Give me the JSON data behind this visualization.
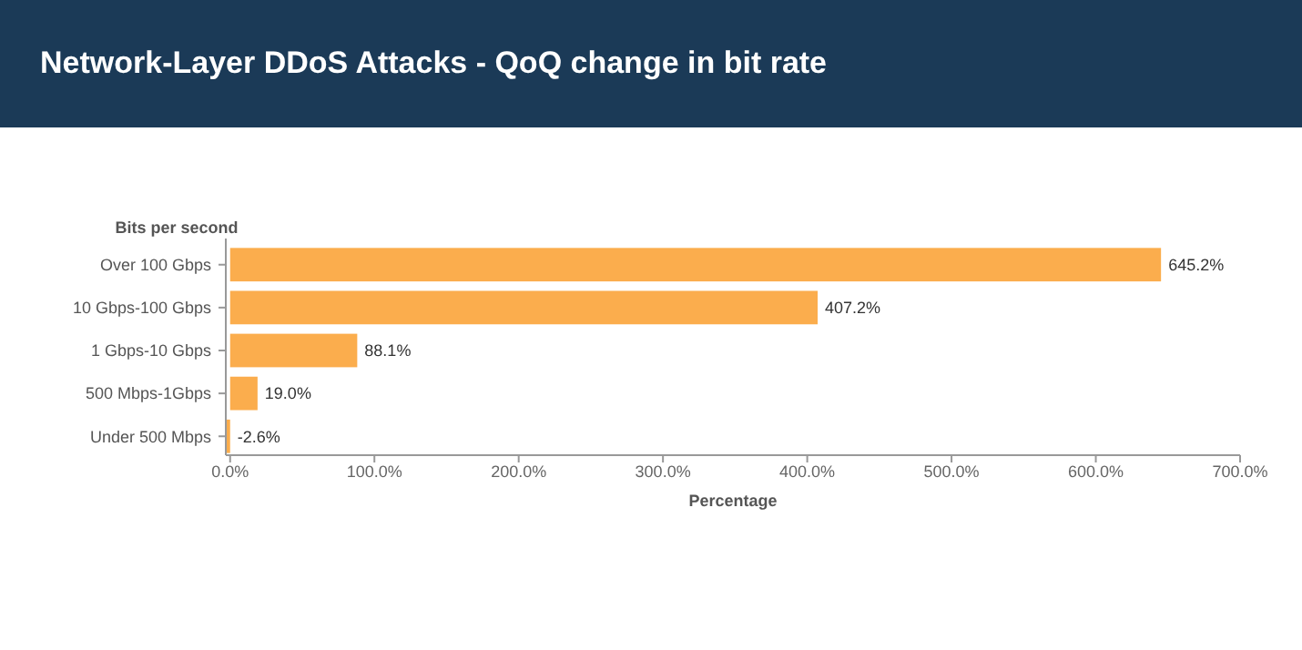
{
  "chart_data": {
    "type": "bar",
    "orientation": "horizontal",
    "title": "Network-Layer DDoS Attacks - QoQ change in bit rate",
    "ylabel": "Bits per second",
    "xlabel": "Percentage",
    "categories": [
      "Over 100 Gbps",
      "10 Gbps-100 Gbps",
      "1 Gbps-10 Gbps",
      "500 Mbps-1Gbps",
      "Under 500 Mbps"
    ],
    "values": [
      645.2,
      407.2,
      88.1,
      19.0,
      -2.6
    ],
    "value_labels": [
      "645.2%",
      "407.2%",
      "88.1%",
      "19.0%",
      "-2.6%"
    ],
    "color": "#fbad4d",
    "xlim": [
      -3,
      700
    ],
    "xticks": [
      {
        "value": 0,
        "label": "0.0%"
      },
      {
        "value": 100,
        "label": "100.0%"
      },
      {
        "value": 200,
        "label": "200.0%"
      },
      {
        "value": 300,
        "label": "300.0%"
      },
      {
        "value": 400,
        "label": "400.0%"
      },
      {
        "value": 500,
        "label": "500.0%"
      },
      {
        "value": 600,
        "label": "600.0%"
      },
      {
        "value": 700,
        "label": "700.0%"
      }
    ]
  }
}
